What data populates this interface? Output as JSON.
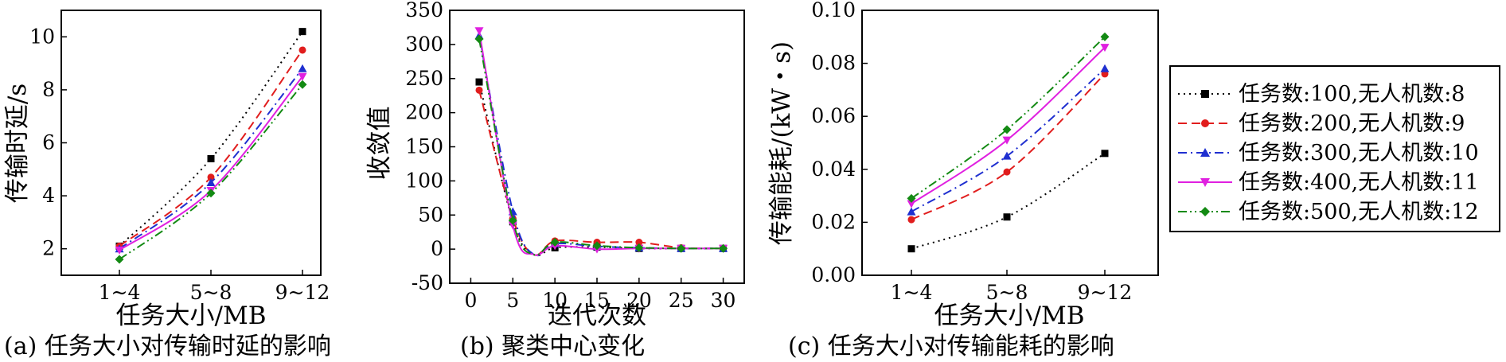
{
  "legend": {
    "entries": [
      {
        "label": "任务数:100,无人机数:8",
        "color": "#000000",
        "dash": "dot",
        "marker": "square"
      },
      {
        "label": "任务数:200,无人机数:9",
        "color": "#e11d1d",
        "dash": "dash",
        "marker": "circle"
      },
      {
        "label": "任务数:300,无人机数:10",
        "color": "#1f2fd0",
        "dash": "dashdot",
        "marker": "triangle-up"
      },
      {
        "label": "任务数:400,无人机数:11",
        "color": "#e020e0",
        "dash": "solid",
        "marker": "triangle-down"
      },
      {
        "label": "任务数:500,无人机数:12",
        "color": "#138a13",
        "dash": "dashdotdot",
        "marker": "diamond"
      }
    ]
  },
  "chart_data": [
    {
      "type": "line",
      "caption": "(a) 任务大小对传输时延的影响",
      "xlabel": "任务大小/MB",
      "ylabel": "传输时延/s",
      "categories": [
        "1~4",
        "5~8",
        "9~12"
      ],
      "ylim": [
        1,
        11
      ],
      "yticks": [
        2,
        4,
        6,
        8,
        10
      ],
      "series": [
        {
          "name": "任务数:100,无人机数:8",
          "values": [
            2.1,
            5.4,
            10.2
          ]
        },
        {
          "name": "任务数:200,无人机数:9",
          "values": [
            2.1,
            4.7,
            9.5
          ]
        },
        {
          "name": "任务数:300,无人机数:10",
          "values": [
            2.0,
            4.5,
            8.8
          ]
        },
        {
          "name": "任务数:400,无人机数:11",
          "values": [
            1.95,
            4.2,
            8.5
          ]
        },
        {
          "name": "任务数:500,无人机数:12",
          "values": [
            1.6,
            4.1,
            8.2
          ]
        }
      ]
    },
    {
      "type": "line",
      "caption": "(b) 聚类中心变化",
      "xlabel": "迭代次数",
      "ylabel": "收敛值",
      "xlim": [
        -2.5,
        32.5
      ],
      "ylim": [
        -50,
        350
      ],
      "xticks": [
        0,
        5,
        10,
        15,
        20,
        25,
        30
      ],
      "yticks": [
        -50,
        0,
        50,
        100,
        150,
        200,
        250,
        300,
        350
      ],
      "series": [
        {
          "name": "任务数:100,无人机数:8",
          "x": [
            1,
            5,
            10,
            15,
            20,
            25,
            30
          ],
          "values": [
            245,
            40,
            2,
            3,
            1,
            1,
            1
          ]
        },
        {
          "name": "任务数:200,无人机数:9",
          "x": [
            1,
            5,
            10,
            15,
            20,
            25,
            30
          ],
          "values": [
            233,
            45,
            12,
            10,
            10,
            2,
            1
          ]
        },
        {
          "name": "任务数:300,无人机数:10",
          "x": [
            1,
            5,
            10,
            15,
            20,
            25,
            30
          ],
          "values": [
            313,
            55,
            8,
            4,
            2,
            1,
            1
          ]
        },
        {
          "name": "任务数:400,无人机数:11",
          "x": [
            1,
            5,
            10,
            15,
            20,
            25,
            30
          ],
          "values": [
            320,
            35,
            5,
            0,
            1,
            1,
            1
          ]
        },
        {
          "name": "任务数:500,无人机数:12",
          "x": [
            1,
            5,
            10,
            15,
            20,
            25,
            30
          ],
          "values": [
            308,
            42,
            10,
            5,
            2,
            1,
            1
          ]
        }
      ]
    },
    {
      "type": "line",
      "caption": "(c) 任务大小对传输能耗的影响",
      "xlabel": "任务大小/MB",
      "ylabel": "传输能耗/(kW・s)",
      "categories": [
        "1~4",
        "5~8",
        "9~12"
      ],
      "ylim": [
        0.0,
        0.1
      ],
      "yticks": [
        "0.00",
        "0.02",
        "0.04",
        "0.06",
        "0.08",
        "0.10"
      ],
      "series": [
        {
          "name": "任务数:100,无人机数:8",
          "values": [
            0.01,
            0.022,
            0.046
          ]
        },
        {
          "name": "任务数:200,无人机数:9",
          "values": [
            0.021,
            0.039,
            0.076
          ]
        },
        {
          "name": "任务数:300,无人机数:10",
          "values": [
            0.024,
            0.045,
            0.078
          ]
        },
        {
          "name": "任务数:400,无人机数:11",
          "values": [
            0.027,
            0.051,
            0.086
          ]
        },
        {
          "name": "任务数:500,无人机数:12",
          "values": [
            0.029,
            0.055,
            0.09
          ]
        }
      ]
    }
  ]
}
